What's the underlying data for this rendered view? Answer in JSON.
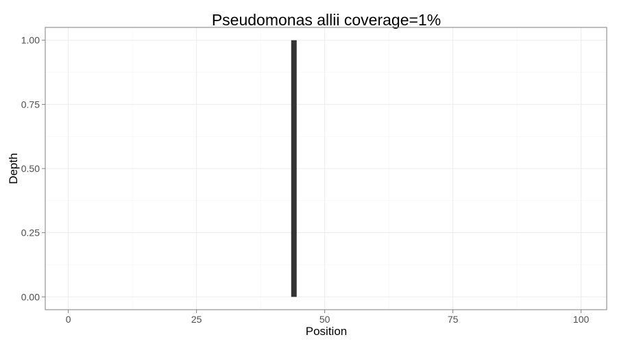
{
  "chart_data": {
    "type": "bar",
    "title": "Pseudomonas allii coverage=1%",
    "xlabel": "Position",
    "ylabel": "Depth",
    "xlim": [
      -4.5,
      105
    ],
    "ylim": [
      -0.05,
      1.05
    ],
    "x_ticks": [
      0,
      25,
      50,
      75,
      100
    ],
    "x_tick_labels": [
      "0",
      "25",
      "50",
      "75",
      "100"
    ],
    "y_ticks": [
      0,
      0.25,
      0.5,
      0.75,
      1.0
    ],
    "y_tick_labels": [
      "0.00",
      "0.25",
      "0.50",
      "0.75",
      "1.00"
    ],
    "grid": true,
    "bars": [
      {
        "x": 44,
        "y0": 0,
        "y1": 1.0
      }
    ],
    "colors": {
      "bar": "#333333",
      "panel_border": "#7f7f7f",
      "grid_major": "#ebebeb",
      "grid_minor": "#f5f5f5",
      "tick_text": "#4d4d4d"
    }
  }
}
